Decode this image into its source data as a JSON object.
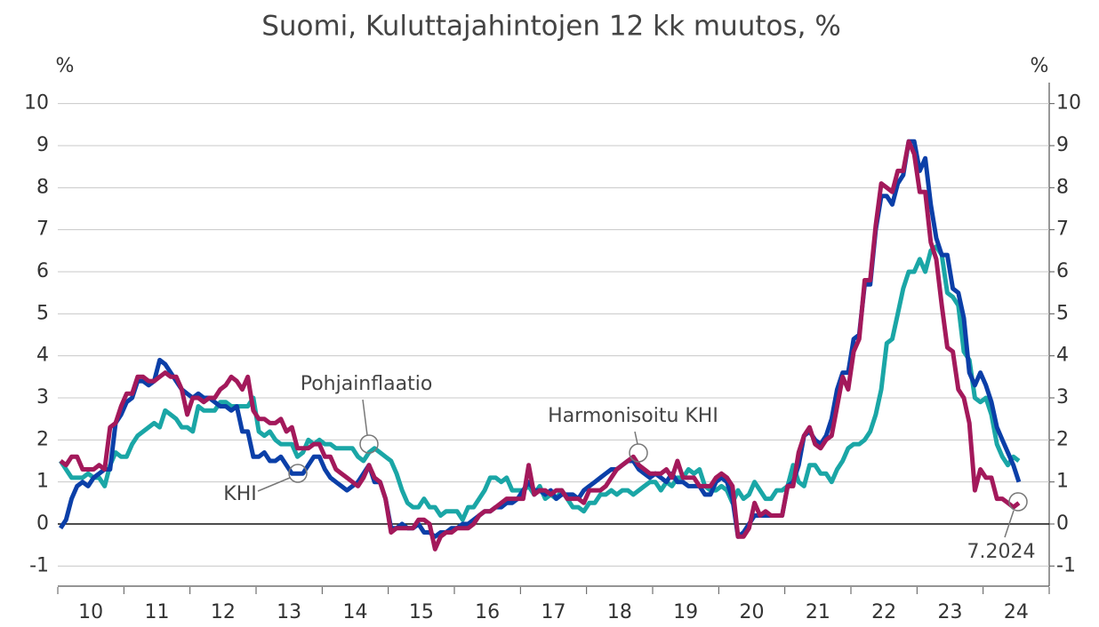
{
  "chart_data": {
    "type": "line",
    "title": "Suomi, Kuluttajahintojen 12 kk muutos, %",
    "ylabel": "%",
    "y2label": "%",
    "categories": [
      null,
      null,
      null,
      null,
      null,
      null,
      "10",
      null,
      null,
      null,
      null,
      null,
      null,
      null,
      null,
      null,
      null,
      null,
      "11",
      null,
      null,
      null,
      null,
      null,
      null,
      null,
      null,
      null,
      null,
      null,
      "12",
      null,
      null,
      null,
      null,
      null,
      null,
      null,
      null,
      null,
      null,
      null,
      "13",
      null,
      null,
      null,
      null,
      null,
      null,
      null,
      null,
      null,
      null,
      null,
      "14",
      null,
      null,
      null,
      null,
      null,
      null,
      null,
      null,
      null,
      null,
      null,
      "15",
      null,
      null,
      null,
      null,
      null,
      null,
      null,
      null,
      null,
      null,
      null,
      "16",
      null,
      null,
      null,
      null,
      null,
      null,
      null,
      null,
      null,
      null,
      null,
      "17",
      null,
      null,
      null,
      null,
      null,
      null,
      null,
      null,
      null,
      null,
      null,
      "18",
      null,
      null,
      null,
      null,
      null,
      null,
      null,
      null,
      null,
      null,
      null,
      "19",
      null,
      null,
      null,
      null,
      null,
      null,
      null,
      null,
      null,
      null,
      null,
      "20",
      null,
      null,
      null,
      null,
      null,
      null,
      null,
      null,
      null,
      null,
      null,
      "21",
      null,
      null,
      null,
      null,
      null,
      null,
      null,
      null,
      null,
      null,
      null,
      "22",
      null,
      null,
      null,
      null,
      null,
      null,
      null,
      null,
      null,
      null,
      null,
      "23",
      null,
      null,
      null,
      null,
      null,
      null,
      null,
      null,
      null,
      null,
      null,
      "24"
    ],
    "series": [
      {
        "name": "Pohjainflaatio",
        "color": "#1aa6a6",
        "values": [
          1.5,
          1.3,
          1.1,
          1.1,
          1.1,
          1.2,
          1.1,
          1.1,
          0.9,
          1.4,
          1.7,
          1.6,
          1.6,
          1.9,
          2.1,
          2.2,
          2.3,
          2.4,
          2.3,
          2.7,
          2.6,
          2.5,
          2.3,
          2.3,
          2.2,
          2.8,
          2.7,
          2.7,
          2.7,
          2.9,
          2.9,
          2.8,
          2.8,
          2.8,
          2.8,
          3.0,
          2.2,
          2.1,
          2.2,
          2.0,
          1.9,
          1.9,
          1.9,
          1.6,
          1.7,
          2.0,
          1.9,
          2.0,
          1.9,
          1.9,
          1.8,
          1.8,
          1.8,
          1.8,
          1.6,
          1.5,
          1.7,
          1.8,
          1.7,
          1.6,
          1.5,
          1.2,
          0.8,
          0.5,
          0.4,
          0.4,
          0.6,
          0.4,
          0.4,
          0.2,
          0.3,
          0.3,
          0.3,
          0.1,
          0.4,
          0.4,
          0.6,
          0.8,
          1.1,
          1.1,
          1.0,
          1.1,
          0.8,
          0.8,
          0.8,
          0.9,
          0.7,
          0.9,
          0.6,
          0.7,
          0.6,
          0.8,
          0.6,
          0.4,
          0.4,
          0.3,
          0.5,
          0.5,
          0.7,
          0.7,
          0.8,
          0.7,
          0.8,
          0.8,
          0.7,
          0.8,
          0.9,
          1.0,
          1.0,
          0.8,
          1.0,
          0.9,
          1.1,
          1.1,
          1.3,
          1.2,
          1.3,
          0.9,
          0.8,
          0.8,
          0.9,
          0.8,
          0.5,
          0.8,
          0.6,
          0.7,
          1.0,
          0.8,
          0.6,
          0.6,
          0.8,
          0.8,
          0.9,
          1.4,
          1.0,
          0.9,
          1.4,
          1.4,
          1.2,
          1.2,
          1.0,
          1.3,
          1.5,
          1.8,
          1.9,
          1.9,
          2.0,
          2.2,
          2.6,
          3.2,
          4.3,
          4.4,
          5.0,
          5.6,
          6.0,
          6.0,
          6.3,
          6.0,
          6.5,
          6.6,
          6.4,
          5.5,
          5.4,
          5.2,
          4.1,
          3.9,
          3.0,
          2.9,
          3.0,
          2.6,
          1.9,
          1.6,
          1.4,
          1.6,
          1.5
        ]
      },
      {
        "name": "KHI",
        "color": "#0b3fa8",
        "values": [
          -0.1,
          0.1,
          0.6,
          0.9,
          1.0,
          0.9,
          1.1,
          1.2,
          1.3,
          1.3,
          2.4,
          2.6,
          2.9,
          3.0,
          3.4,
          3.4,
          3.3,
          3.4,
          3.9,
          3.8,
          3.6,
          3.4,
          3.2,
          3.1,
          3.0,
          3.1,
          3.0,
          3.0,
          2.9,
          2.8,
          2.8,
          2.7,
          2.8,
          2.2,
          2.2,
          1.6,
          1.6,
          1.7,
          1.5,
          1.5,
          1.6,
          1.4,
          1.2,
          1.2,
          1.2,
          1.4,
          1.6,
          1.6,
          1.3,
          1.1,
          1.0,
          0.9,
          0.8,
          0.9,
          1.0,
          1.2,
          1.4,
          1.0,
          1.0,
          0.6,
          -0.1,
          -0.1,
          0.0,
          -0.1,
          -0.1,
          0.0,
          -0.2,
          -0.2,
          -0.3,
          -0.2,
          -0.2,
          -0.1,
          -0.1,
          0.0,
          0.0,
          0.1,
          0.2,
          0.3,
          0.3,
          0.4,
          0.4,
          0.5,
          0.5,
          0.6,
          0.8,
          1.0,
          0.8,
          0.8,
          0.7,
          0.8,
          0.6,
          0.7,
          0.7,
          0.7,
          0.6,
          0.8,
          0.9,
          1.0,
          1.1,
          1.2,
          1.3,
          1.3,
          1.4,
          1.5,
          1.5,
          1.3,
          1.2,
          1.1,
          1.2,
          1.1,
          1.0,
          1.2,
          1.0,
          1.0,
          0.9,
          0.9,
          0.9,
          0.7,
          0.7,
          1.0,
          1.1,
          1.0,
          0.6,
          -0.3,
          -0.2,
          0.0,
          0.2,
          0.2,
          0.2,
          0.2,
          0.2,
          0.2,
          0.9,
          1.0,
          1.4,
          2.1,
          2.2,
          2.0,
          1.9,
          2.1,
          2.5,
          3.2,
          3.6,
          3.6,
          4.4,
          4.5,
          5.7,
          5.7,
          7.0,
          7.8,
          7.8,
          7.6,
          8.1,
          8.3,
          9.1,
          9.1,
          8.4,
          8.7,
          7.6,
          6.8,
          6.4,
          6.4,
          5.6,
          5.5,
          4.9,
          3.6,
          3.3,
          3.6,
          3.3,
          2.9,
          2.3,
          2.0,
          1.7,
          1.4,
          1.0
        ]
      },
      {
        "name": "Harmonisoitu KHI",
        "color": "#a3195b",
        "values": [
          1.5,
          1.4,
          1.6,
          1.6,
          1.3,
          1.3,
          1.3,
          1.4,
          1.3,
          2.3,
          2.4,
          2.8,
          3.1,
          3.1,
          3.5,
          3.5,
          3.4,
          3.4,
          3.5,
          3.6,
          3.5,
          3.5,
          3.2,
          2.6,
          3.0,
          3.0,
          2.9,
          3.0,
          3.0,
          3.2,
          3.3,
          3.5,
          3.4,
          3.2,
          3.5,
          2.7,
          2.5,
          2.5,
          2.4,
          2.4,
          2.5,
          2.2,
          2.3,
          1.8,
          1.8,
          1.8,
          1.9,
          1.9,
          1.6,
          1.6,
          1.3,
          1.2,
          1.1,
          1.0,
          0.9,
          1.1,
          1.4,
          1.1,
          1.0,
          0.6,
          -0.2,
          -0.1,
          -0.1,
          -0.1,
          -0.1,
          0.1,
          0.1,
          0.0,
          -0.6,
          -0.3,
          -0.2,
          -0.2,
          -0.1,
          -0.1,
          -0.1,
          0.0,
          0.2,
          0.3,
          0.3,
          0.4,
          0.5,
          0.6,
          0.6,
          0.6,
          0.6,
          1.4,
          0.7,
          0.8,
          0.8,
          0.7,
          0.8,
          0.8,
          0.6,
          0.6,
          0.6,
          0.5,
          0.8,
          0.8,
          0.8,
          0.9,
          1.1,
          1.3,
          1.4,
          1.5,
          1.6,
          1.4,
          1.3,
          1.2,
          1.2,
          1.2,
          1.3,
          1.1,
          1.5,
          1.1,
          1.1,
          1.1,
          0.9,
          0.9,
          0.9,
          1.1,
          1.2,
          1.1,
          0.9,
          -0.3,
          -0.3,
          -0.1,
          0.5,
          0.2,
          0.3,
          0.2,
          0.2,
          0.2,
          0.9,
          0.9,
          1.7,
          2.1,
          2.3,
          1.9,
          1.8,
          2.0,
          2.1,
          2.8,
          3.5,
          3.2,
          4.1,
          4.4,
          5.8,
          5.8,
          7.1,
          8.1,
          8.0,
          7.9,
          8.4,
          8.4,
          9.1,
          8.8,
          7.9,
          7.9,
          6.7,
          6.3,
          5.2,
          4.2,
          4.1,
          3.2,
          3.0,
          2.4,
          0.8,
          1.3,
          1.1,
          1.1,
          0.6,
          0.6,
          0.5,
          0.4,
          0.5
        ]
      }
    ],
    "annotation": "7.2024",
    "ylim": [
      -1.5,
      10.5
    ],
    "yticks": [
      -1,
      0,
      1,
      2,
      3,
      4,
      5,
      6,
      7,
      8,
      9,
      10
    ],
    "y2lim": [
      -1.5,
      10.5
    ],
    "y2ticks": [
      -1,
      0,
      1,
      2,
      3,
      4,
      5,
      6,
      7,
      8,
      9,
      10
    ],
    "grid": true
  }
}
